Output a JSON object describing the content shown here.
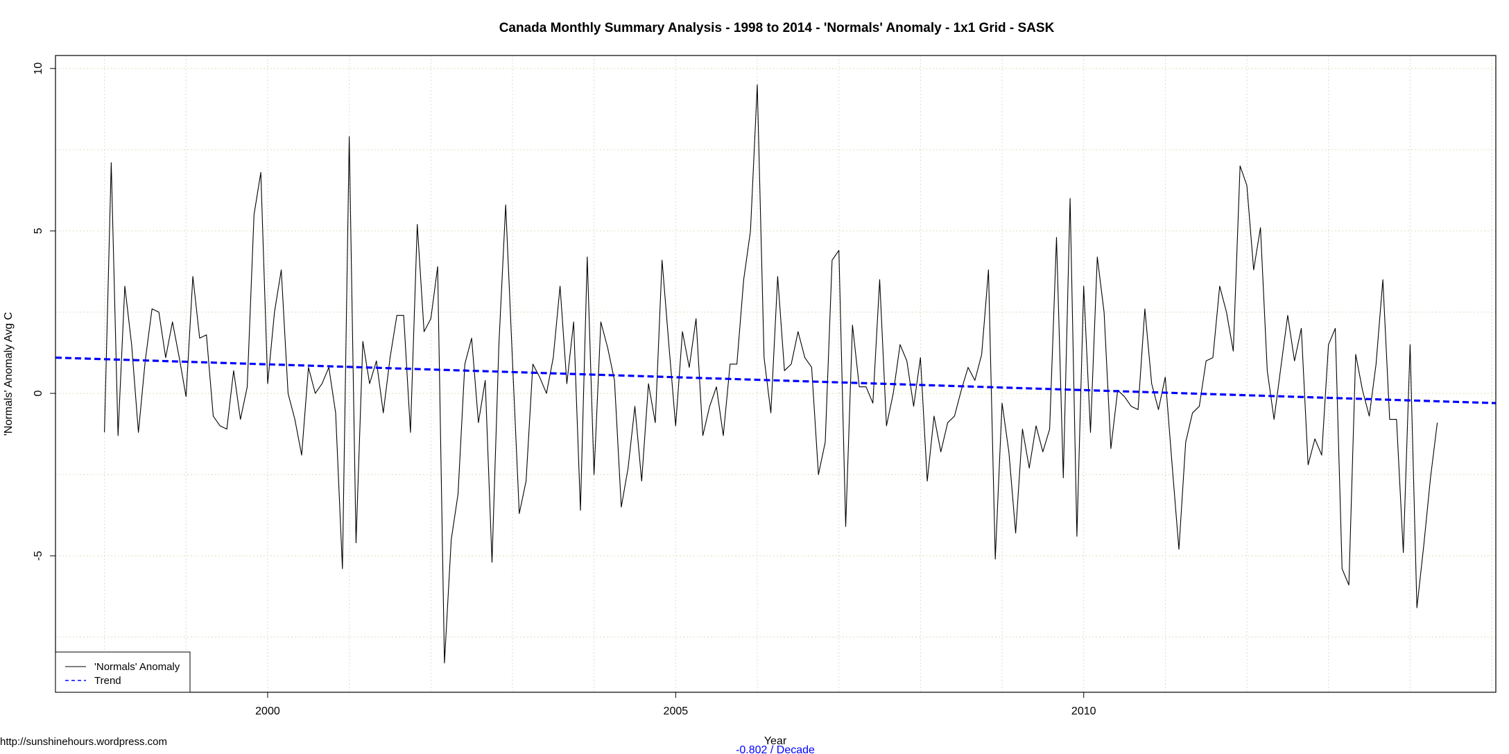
{
  "source_text": "http://sunshinehours.wordpress.com",
  "chart_data": {
    "type": "line",
    "title": "Canada Monthly Summary Analysis - 1998 to 2014 - 'Normals' Anomaly - 1x1 Grid - SASK",
    "xlabel": "Year",
    "ylabel": "'Normals' Anomaly Avg C",
    "trend_rate": "-0.802  / Decade",
    "trend_rate_color": "#0000ff",
    "xlim": [
      1997.4,
      2015.05
    ],
    "ylim": [
      -9.2,
      10.4
    ],
    "x_ticks": [
      2000,
      2005,
      2010
    ],
    "y_ticks": [
      -5,
      0,
      5,
      10
    ],
    "x_tick_labels": [
      "2000",
      "2005",
      "2010"
    ],
    "y_tick_labels": [
      "-5",
      "0",
      "5",
      "10"
    ],
    "grid": true,
    "grid_color": "#d8e0c0",
    "legend_position": "bottom-left",
    "legend": [
      "'Normals' Anomaly",
      "Trend"
    ],
    "series": [
      {
        "name": "'Normals' Anomaly",
        "color": "#000000",
        "style": "solid",
        "x_start": 1998.0,
        "x_step": 0.08333,
        "values": [
          -1.2,
          7.1,
          -1.3,
          3.3,
          1.5,
          -1.2,
          1.0,
          2.6,
          2.5,
          1.1,
          2.2,
          1.1,
          -0.1,
          3.6,
          1.7,
          1.8,
          -0.7,
          -1.0,
          -1.1,
          0.7,
          -0.8,
          0.2,
          5.5,
          6.8,
          0.3,
          2.5,
          3.8,
          0.0,
          -0.8,
          -1.9,
          0.8,
          0.0,
          0.3,
          0.8,
          -0.6,
          -5.4,
          7.9,
          -4.6,
          1.6,
          0.3,
          1.0,
          -0.6,
          1.1,
          2.4,
          2.4,
          -1.2,
          5.2,
          1.9,
          2.3,
          3.9,
          -8.3,
          -4.5,
          -3.1,
          0.9,
          1.7,
          -0.9,
          0.4,
          -5.2,
          1.5,
          5.8,
          1.0,
          -3.7,
          -2.7,
          0.9,
          0.5,
          0.0,
          1.1,
          3.3,
          0.3,
          2.2,
          -3.6,
          4.2,
          -2.5,
          2.2,
          1.4,
          0.4,
          -3.5,
          -2.3,
          -0.4,
          -2.7,
          0.3,
          -0.9,
          4.1,
          1.5,
          -1.0,
          1.9,
          0.8,
          2.3,
          -1.3,
          -0.4,
          0.2,
          -1.3,
          0.9,
          0.9,
          3.5,
          5.0,
          9.5,
          1.1,
          -0.6,
          3.6,
          0.7,
          0.9,
          1.9,
          1.1,
          0.8,
          -2.5,
          -1.5,
          4.1,
          4.4,
          -4.1,
          2.1,
          0.2,
          0.2,
          -0.3,
          3.5,
          -1.0,
          0.0,
          1.5,
          1.0,
          -0.4,
          1.1,
          -2.7,
          -0.7,
          -1.8,
          -0.9,
          -0.7,
          0.1,
          0.8,
          0.4,
          1.2,
          3.8,
          -5.1,
          -0.3,
          -1.8,
          -4.3,
          -1.1,
          -2.3,
          -1.0,
          -1.8,
          -1.1,
          4.8,
          -2.6,
          6.0,
          -4.4,
          3.3,
          -1.2,
          4.2,
          2.5,
          -1.7,
          0.1,
          -0.1,
          -0.4,
          -0.5,
          2.6,
          0.3,
          -0.5,
          0.5,
          -2.2,
          -4.8,
          -1.5,
          -0.6,
          -0.4,
          1.0,
          1.1,
          3.3,
          2.5,
          1.3,
          7.0,
          6.4,
          3.8,
          5.1,
          0.7,
          -0.8,
          0.8,
          2.4,
          1.0,
          2.0,
          -2.2,
          -1.4,
          -1.9,
          1.5,
          2.0,
          -5.4,
          -5.9,
          1.2,
          0.1,
          -0.7,
          0.9,
          3.5,
          -0.8,
          -0.8,
          -4.9,
          1.5,
          -6.6,
          -4.7,
          -2.6,
          -0.9
        ]
      },
      {
        "name": "Trend",
        "color": "#0000ff",
        "style": "dashed",
        "x": [
          1997.4,
          2015.05
        ],
        "y": [
          1.1,
          -0.3
        ]
      }
    ]
  }
}
